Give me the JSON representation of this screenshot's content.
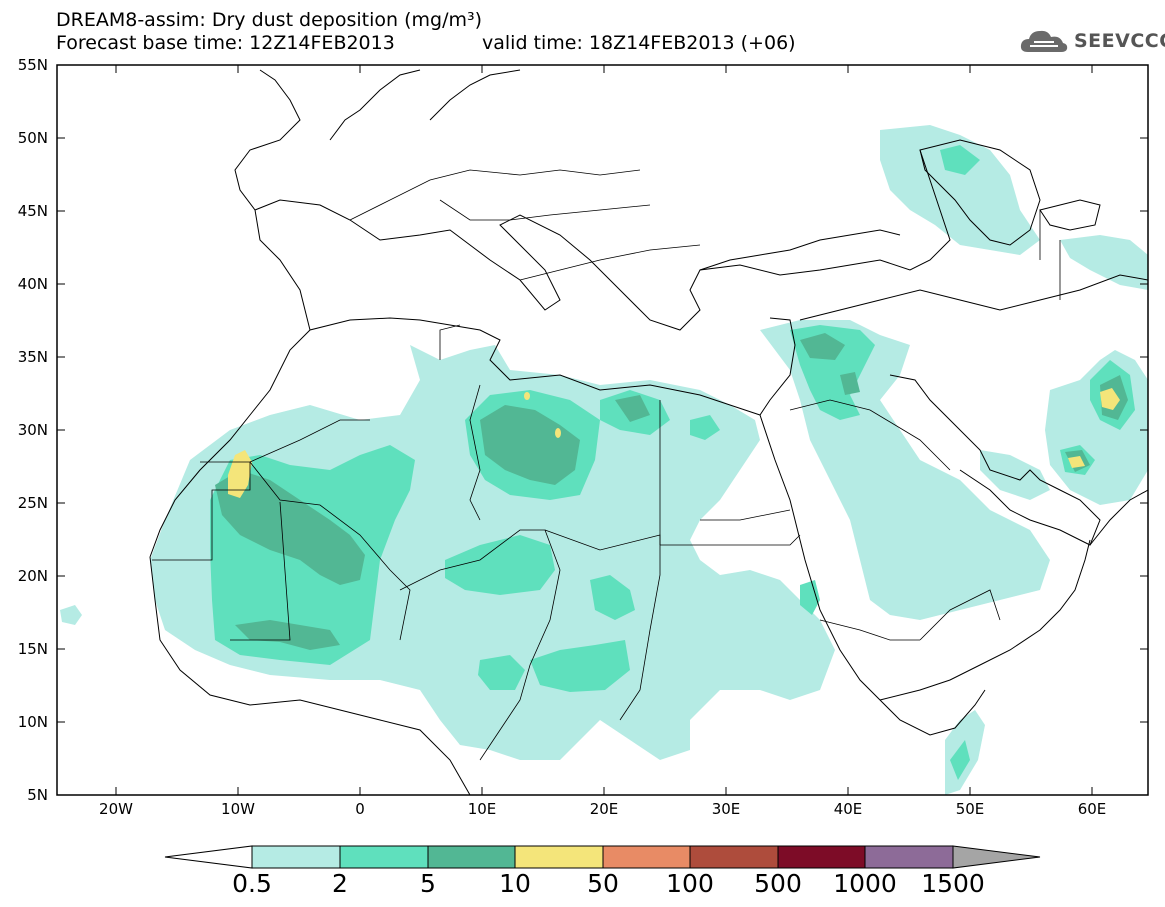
{
  "header": {
    "title_line1": "DREAM8-assim: Dry dust deposition (mg/m³)",
    "title_line2": "Forecast base time: 12Z14FEB2013",
    "valid_time": "valid time: 18Z14FEB2013 (+06)",
    "logo_text": "SEEVCCC"
  },
  "axes": {
    "lat_labels": [
      "55N",
      "50N",
      "45N",
      "40N",
      "35N",
      "30N",
      "25N",
      "20N",
      "15N",
      "10N",
      "5N"
    ],
    "lon_labels": [
      "20W",
      "10W",
      "0",
      "10E",
      "20E",
      "30E",
      "40E",
      "50E",
      "60E"
    ]
  },
  "colorbar": {
    "labels": [
      "0.5",
      "2",
      "5",
      "10",
      "50",
      "100",
      "500",
      "1000",
      "1500"
    ],
    "colors": [
      "#ffffff",
      "#b5ebe4",
      "#5fe0bd",
      "#52b794",
      "#f4e57a",
      "#e88b65",
      "#ae4c3c",
      "#7d0c27",
      "#8d6b98",
      "#a5a5a5"
    ]
  },
  "map_colors": {
    "level1": "#b5ebe4",
    "level2": "#5fe0bd",
    "level3": "#52b794",
    "level4": "#f4e57a"
  }
}
